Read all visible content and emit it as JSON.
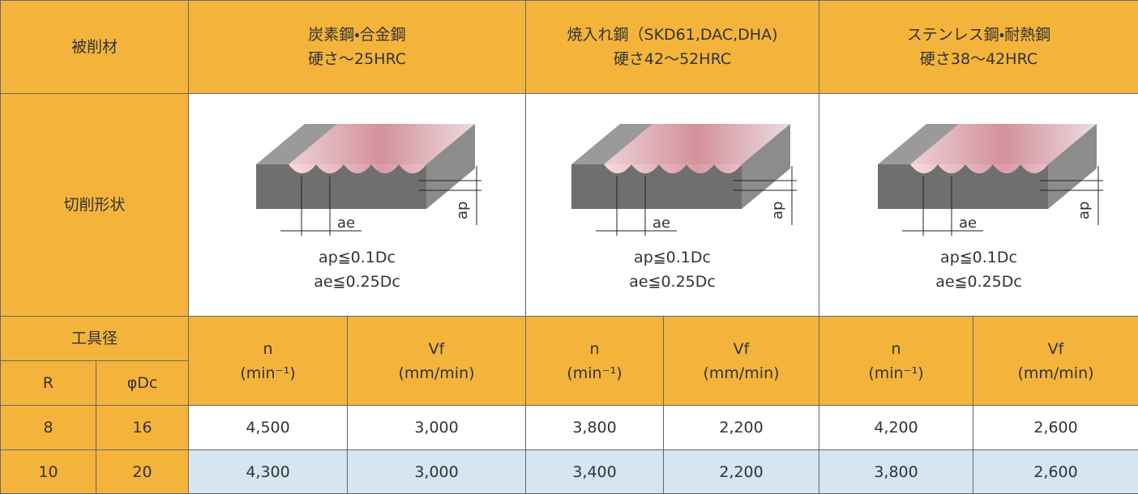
{
  "header": {
    "material_label": "被削材",
    "materials": [
      {
        "name": "炭素鋼・合金鋼",
        "hardness": "硬さ～25HRC"
      },
      {
        "name": "焼入れ鋼（SKD61,DAC,DHA)",
        "hardness": "硬さ42～52HRC"
      },
      {
        "name": "ステンレス鋼・耐熱鋼",
        "hardness": "硬さ38～42HRC"
      }
    ]
  },
  "shape": {
    "label": "切削形状",
    "figures": [
      {
        "width_label": "ae",
        "depth_label": "ap",
        "conditions": [
          "ap≦0.1Dc",
          "ae≦0.25Dc"
        ]
      },
      {
        "width_label": "ae",
        "depth_label": "ap",
        "conditions": [
          "ap≦0.1Dc",
          "ae≦0.25Dc"
        ]
      },
      {
        "width_label": "ae",
        "depth_label": "ap",
        "conditions": [
          "ap≦0.1Dc",
          "ae≦0.25Dc"
        ]
      }
    ]
  },
  "tool": {
    "label": "工具径",
    "r_label": "R",
    "dc_label": "φDc"
  },
  "speed_headers": [
    {
      "name": "n",
      "unit": "(min⁻¹)"
    },
    {
      "name": "Vf",
      "unit": "(mm/min)"
    },
    {
      "name": "n",
      "unit": "(min⁻¹)"
    },
    {
      "name": "Vf",
      "unit": "(mm/min)"
    },
    {
      "name": "n",
      "unit": "(min⁻¹)"
    },
    {
      "name": "Vf",
      "unit": "(mm/min)"
    }
  ],
  "rows": [
    [
      "8",
      "16",
      "4,500",
      "3,000",
      "3,800",
      "2,200",
      "4,200",
      "2,600"
    ],
    [
      "10",
      "20",
      "4,300",
      "3,000",
      "3,400",
      "2,200",
      "3,800",
      "2,600"
    ]
  ]
}
